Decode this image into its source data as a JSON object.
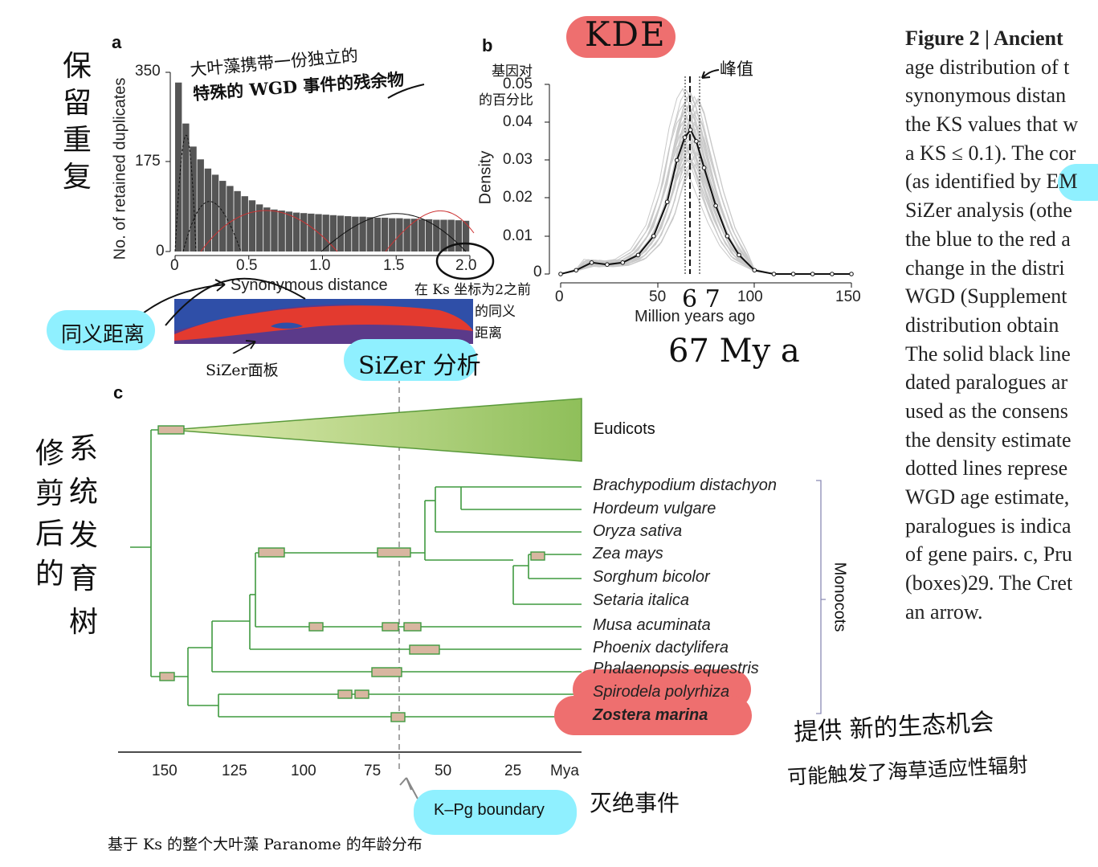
{
  "panel_a": {
    "letter": "a",
    "ylabel": "No. of retained duplicates",
    "yticks": [
      "350",
      "175",
      "0"
    ],
    "xticks": [
      "0",
      "0.5",
      "1.0",
      "1.5",
      "2.0"
    ],
    "xlabel": "Synonymous distance"
  },
  "panel_b": {
    "letter": "b",
    "ylabel": "Density",
    "yticks": [
      "0.05",
      "0.04",
      "0.03",
      "0.02",
      "0.01",
      "0"
    ],
    "xticks": [
      "0",
      "50",
      "100",
      "150"
    ],
    "xlabel": "Million years ago"
  },
  "panel_c": {
    "letter": "c",
    "eudicots": "Eudicots",
    "monocots": "Monocots",
    "species": [
      "Brachypodium distachyon",
      "Hordeum vulgare",
      "Oryza sativa",
      "Zea mays",
      "Sorghum bicolor",
      "Setaria italica",
      "Musa acuminata",
      "Phoenix dactylifera",
      "Phalaenopsis equestris",
      "Spirodela polyrhiza",
      "Zostera marina"
    ],
    "xticks": [
      "150",
      "125",
      "100",
      "75",
      "50",
      "25"
    ],
    "unit": "Mya",
    "boundary": "K–Pg boundary"
  },
  "caption": [
    {
      "bold": "Figure 2 | Ancient",
      "rest": ""
    },
    {
      "bold": "",
      "rest": "age distribution of t"
    },
    {
      "bold": "",
      "rest": "synonymous distan"
    },
    {
      "bold": "",
      "rest": "the KS values that w"
    },
    {
      "bold": "",
      "rest": "a KS ≤ 0.1). The cor"
    },
    {
      "bold": "",
      "rest": "(as identified by EM"
    },
    {
      "bold": "",
      "rest": "SiZer analysis (othe"
    },
    {
      "bold": "",
      "rest": "the blue to the red a"
    },
    {
      "bold": "",
      "rest": "change in the distri"
    },
    {
      "bold": "",
      "rest": "WGD (Supplement"
    },
    {
      "bold": "",
      "rest": "distribution obtain"
    },
    {
      "bold": "",
      "rest": "The solid black line"
    },
    {
      "bold": "",
      "rest": "dated paralogues ar"
    },
    {
      "bold": "",
      "rest": "used as the consens"
    },
    {
      "bold": "",
      "rest": "the density estimate"
    },
    {
      "bold": "",
      "rest": "dotted lines represe"
    },
    {
      "bold": "",
      "rest": "WGD age estimate,"
    },
    {
      "bold": "",
      "rest": "paralogues is indica"
    },
    {
      "bold": "",
      "rest": "of gene pairs. c, Pru"
    },
    {
      "bold": "",
      "rest": "(boxes)29. The Cret"
    },
    {
      "bold": "",
      "rest": "an arrow."
    }
  ],
  "annotations": {
    "retained_dup": "保留重复",
    "note_a": "大叶藻携带一份独立的",
    "note_a2": "特殊的 WGD 事件的残余物",
    "gene_pct": "基因对",
    "gene_pct2": "的百分比",
    "kde": "KDE",
    "peak": "峰值",
    "peak_67": "6 7",
    "mya67": "67 My a",
    "ks_interval": "在 Ks 坐标为2之前",
    "ks_interval2": "的同义",
    "ks_interval3": "距离",
    "syn_dist": "同义距离",
    "sizer_panel": "SiZer面板",
    "sizer_analysis": "SiZer 分析",
    "pruned": "修剪后的",
    "tree": "系统发育树",
    "opportunity": "提供 新的生态机会",
    "radiation": "可能触发了海草适应性辐射",
    "extinction": "灭绝事件",
    "bottom": "基于 Ks 的整个大叶藻 Paranome 的年龄分布"
  },
  "chart_data": [
    {
      "type": "bar",
      "title": "",
      "xlabel": "Synonymous distance",
      "ylabel": "No. of retained duplicates",
      "xlim": [
        0,
        2.0
      ],
      "ylim": [
        0,
        350
      ],
      "bin_width": 0.05,
      "values": [
        330,
        250,
        205,
        180,
        162,
        150,
        138,
        128,
        118,
        108,
        100,
        92,
        86,
        82,
        80,
        78,
        76,
        75,
        74,
        73,
        72,
        71,
        70,
        69,
        68,
        68,
        67,
        66,
        66,
        65,
        65,
        64,
        64,
        63,
        63,
        62,
        62,
        62,
        61,
        60
      ]
    },
    {
      "type": "line",
      "title": "",
      "xlabel": "Million years ago",
      "ylabel": "Density",
      "xlim": [
        0,
        150
      ],
      "ylim": [
        0,
        0.05
      ],
      "series": [
        {
          "x": [
            0,
            8,
            16,
            24,
            32,
            40,
            48,
            55,
            60,
            64,
            67,
            70,
            74,
            80,
            86,
            92,
            100,
            110,
            120,
            130,
            140,
            150
          ],
          "y": [
            0,
            0.001,
            0.003,
            0.0025,
            0.003,
            0.005,
            0.01,
            0.019,
            0.03,
            0.036,
            0.038,
            0.035,
            0.028,
            0.018,
            0.01,
            0.005,
            0.001,
            0,
            0,
            0,
            0,
            0
          ]
        }
      ],
      "annotations": {
        "peak": 67
      }
    }
  ]
}
